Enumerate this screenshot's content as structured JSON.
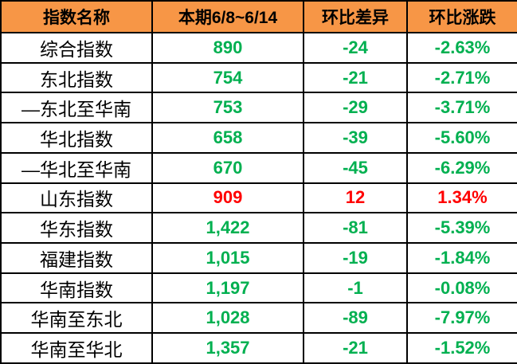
{
  "table": {
    "headers": [
      "指数名称",
      "本期6/8~6/14",
      "环比差异",
      "环比涨跌"
    ],
    "rows": [
      {
        "name": "综合指数",
        "value": "890",
        "diff": "-24",
        "change": "-2.63%",
        "trend": "down"
      },
      {
        "name": "东北指数",
        "value": "754",
        "diff": "-21",
        "change": "-2.71%",
        "trend": "down"
      },
      {
        "name": "—东北至华南",
        "value": "753",
        "diff": "-29",
        "change": "-3.71%",
        "trend": "down"
      },
      {
        "name": "华北指数",
        "value": "658",
        "diff": "-39",
        "change": "-5.60%",
        "trend": "down"
      },
      {
        "name": "—华北至华南",
        "value": "670",
        "diff": "-45",
        "change": "-6.29%",
        "trend": "down"
      },
      {
        "name": "山东指数",
        "value": "909",
        "diff": "12",
        "change": "1.34%",
        "trend": "up"
      },
      {
        "name": "华东指数",
        "value": "1,422",
        "diff": "-81",
        "change": "-5.39%",
        "trend": "down"
      },
      {
        "name": "福建指数",
        "value": "1,015",
        "diff": "-19",
        "change": "-1.84%",
        "trend": "down"
      },
      {
        "name": "华南指数",
        "value": "1,197",
        "diff": "-1",
        "change": "-0.08%",
        "trend": "down"
      },
      {
        "name": "华南至东北",
        "value": "1,028",
        "diff": "-89",
        "change": "-7.97%",
        "trend": "down"
      },
      {
        "name": "华南至华北",
        "value": "1,357",
        "diff": "-21",
        "change": "-1.52%",
        "trend": "down"
      }
    ]
  },
  "colors": {
    "header_bg": "#F79646",
    "header_text": "#000000",
    "down": "#00B050",
    "up": "#FF0000",
    "border": "#000000",
    "row_bg": "#FFFFFF"
  },
  "chart_data": {
    "type": "table",
    "title": "",
    "columns": [
      "指数名称",
      "本期6/8~6/14",
      "环比差异",
      "环比涨跌"
    ],
    "rows": [
      [
        "综合指数",
        890,
        -24,
        "-2.63%"
      ],
      [
        "东北指数",
        754,
        -21,
        "-2.71%"
      ],
      [
        "—东北至华南",
        753,
        -29,
        "-3.71%"
      ],
      [
        "华北指数",
        658,
        -39,
        "-5.60%"
      ],
      [
        "—华北至华南",
        670,
        -45,
        "-6.29%"
      ],
      [
        "山东指数",
        909,
        12,
        "1.34%"
      ],
      [
        "华东指数",
        1422,
        -81,
        "-5.39%"
      ],
      [
        "福建指数",
        1015,
        -19,
        "-1.84%"
      ],
      [
        "华南指数",
        1197,
        -1,
        "-0.08%"
      ],
      [
        "华南至东北",
        1028,
        -89,
        "-7.97%"
      ],
      [
        "华南至华北",
        1357,
        -21,
        "-1.52%"
      ]
    ],
    "notes": "negative values shown in green (#00B050), positive in red (#FF0000)"
  }
}
